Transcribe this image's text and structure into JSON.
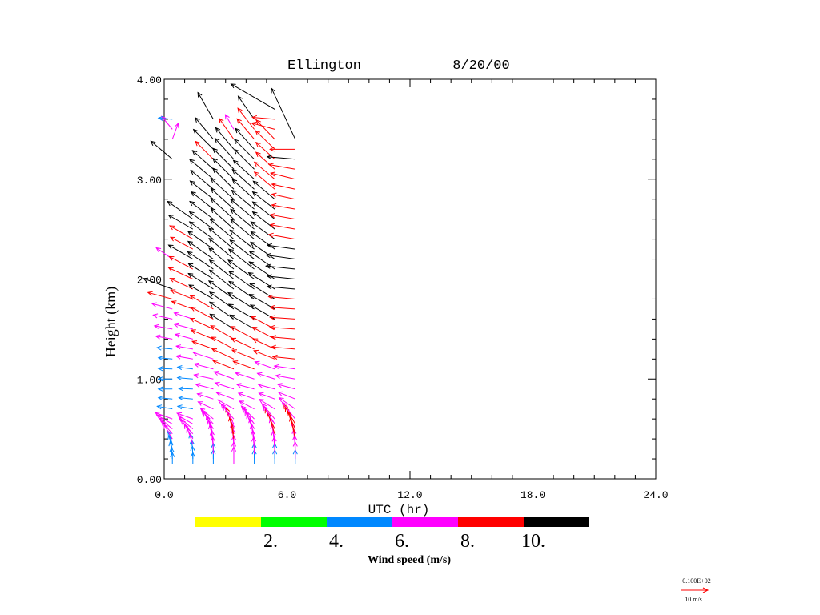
{
  "chart_data": {
    "type": "wind-profile",
    "title": "Ellington",
    "date": "8/20/00",
    "xlabel": "UTC (hr)",
    "ylabel": "Height (km)",
    "xlim": [
      0,
      24
    ],
    "ylim": [
      0,
      4
    ],
    "xticks": [
      "0.0",
      "6.0",
      "12.0",
      "18.0",
      "24.0"
    ],
    "yticks": [
      "0.00",
      "1.00",
      "2.00",
      "3.00",
      "4.00"
    ],
    "colorbar": {
      "label": "Wind speed (m/s)",
      "colors": [
        "#ffff00",
        "#00ff00",
        "#0088ff",
        "#ff00ff",
        "#ff0000",
        "#000000"
      ],
      "tick_labels": [
        "2.",
        "4.",
        "6.",
        "8.",
        "10."
      ]
    },
    "reference_vector": {
      "value_label": "0.100E+02",
      "unit_label": "10 m/s",
      "color": "#ff0000"
    },
    "profile_times": [
      0.4,
      1.4,
      2.4,
      3.4,
      4.4,
      5.4,
      6.4
    ],
    "profiles": [
      {
        "t": 0.4,
        "h": [
          0.15,
          0.2,
          0.25,
          0.3,
          0.35,
          0.4,
          0.45,
          0.5,
          0.55,
          0.6,
          0.7,
          0.8,
          0.9,
          1.0,
          1.1,
          1.2,
          1.3,
          1.4,
          1.5,
          1.6,
          1.7,
          1.8,
          1.9,
          2.2,
          3.2,
          3.4,
          3.5,
          3.6
        ],
        "speed": [
          4,
          4,
          4.5,
          5,
          5,
          6,
          6,
          6,
          6.5,
          6.5,
          5.5,
          5,
          5,
          5,
          5,
          5,
          5.5,
          6,
          6.5,
          7,
          7.5,
          9,
          11,
          7,
          10,
          6,
          6,
          5
        ],
        "dir": [
          180,
          175,
          170,
          165,
          160,
          150,
          140,
          130,
          120,
          110,
          100,
          95,
          90,
          90,
          92,
          95,
          95,
          100,
          100,
          102,
          105,
          105,
          110,
          125,
          130,
          200,
          140,
          95
        ]
      },
      {
        "t": 1.4,
        "h": [
          0.15,
          0.2,
          0.25,
          0.3,
          0.35,
          0.4,
          0.45,
          0.5,
          0.55,
          0.6,
          0.7,
          0.8,
          0.9,
          1.0,
          1.1,
          1.2,
          1.3,
          1.4,
          1.5,
          1.6,
          1.7,
          1.8,
          1.9,
          2.0,
          2.1,
          2.2,
          2.3,
          2.4,
          2.5,
          2.6
        ],
        "speed": [
          4,
          4.5,
          5,
          5.5,
          6,
          6,
          6.5,
          6.5,
          6,
          6,
          5.5,
          5,
          5,
          5.5,
          5.5,
          6,
          6,
          6.5,
          7,
          7,
          8,
          8.5,
          9,
          9.5,
          9.5,
          10,
          9,
          9.5,
          10,
          11
        ],
        "dir": [
          180,
          178,
          175,
          170,
          160,
          150,
          140,
          130,
          120,
          110,
          100,
          95,
          92,
          95,
          97,
          100,
          100,
          105,
          105,
          108,
          110,
          112,
          115,
          115,
          118,
          120,
          118,
          120,
          120,
          125
        ]
      },
      {
        "t": 2.4,
        "h": [
          0.15,
          0.2,
          0.25,
          0.3,
          0.35,
          0.4,
          0.45,
          0.5,
          0.55,
          0.6,
          0.7,
          0.8,
          0.9,
          1.0,
          1.1,
          1.2,
          1.3,
          1.4,
          1.5,
          1.6,
          1.7,
          1.8,
          1.9,
          2.0,
          2.1,
          2.2,
          2.3,
          2.4,
          2.5,
          2.6,
          2.7,
          2.8,
          2.9,
          3.0,
          3.1,
          3.2,
          3.3,
          3.4,
          3.6
        ],
        "speed": [
          5,
          5.5,
          6,
          6.5,
          7,
          7,
          7,
          7,
          6.5,
          6,
          6,
          6,
          6.5,
          7,
          7,
          7.5,
          8,
          8.5,
          9,
          9,
          9.5,
          10,
          10.5,
          10.5,
          11,
          11,
          11,
          10.5,
          10.5,
          10.5,
          10,
          10.5,
          10.5,
          11,
          10,
          9,
          10,
          10,
          11
        ],
        "dir": [
          180,
          180,
          178,
          175,
          170,
          165,
          160,
          150,
          140,
          130,
          115,
          108,
          105,
          102,
          105,
          108,
          110,
          112,
          115,
          118,
          120,
          120,
          122,
          122,
          124,
          125,
          125,
          126,
          126,
          127,
          128,
          128,
          130,
          130,
          132,
          135,
          135,
          140,
          150
        ]
      },
      {
        "t": 3.4,
        "h": [
          0.15,
          0.2,
          0.25,
          0.3,
          0.35,
          0.4,
          0.45,
          0.5,
          0.55,
          0.6,
          0.7,
          0.8,
          0.9,
          1.0,
          1.1,
          1.2,
          1.3,
          1.4,
          1.5,
          1.6,
          1.7,
          1.8,
          1.9,
          2.0,
          2.1,
          2.2,
          2.3,
          2.4,
          2.5,
          2.6,
          2.7,
          2.8,
          2.9,
          3.0,
          3.1,
          3.2,
          3.3,
          3.4,
          3.5
        ],
        "speed": [
          6,
          6,
          6.5,
          7,
          7.5,
          8,
          8,
          8,
          7.5,
          7,
          6.5,
          6.5,
          7,
          7.5,
          8,
          8.5,
          9,
          9.5,
          10,
          10.5,
          10.5,
          11,
          11,
          11,
          11.5,
          11.5,
          11.5,
          11,
          11,
          11,
          11,
          11,
          10.5,
          10.5,
          10.5,
          10,
          10,
          9,
          6
        ],
        "dir": [
          180,
          180,
          180,
          178,
          175,
          170,
          165,
          160,
          150,
          140,
          120,
          110,
          108,
          110,
          112,
          115,
          118,
          120,
          122,
          125,
          125,
          126,
          128,
          128,
          130,
          130,
          130,
          130,
          132,
          132,
          132,
          132,
          135,
          135,
          135,
          138,
          140,
          145,
          150
        ]
      },
      {
        "t": 4.4,
        "h": [
          0.15,
          0.2,
          0.25,
          0.3,
          0.35,
          0.4,
          0.45,
          0.5,
          0.55,
          0.6,
          0.7,
          0.8,
          0.9,
          1.0,
          1.1,
          1.2,
          1.3,
          1.4,
          1.5,
          1.6,
          1.7,
          1.8,
          1.9,
          2.0,
          2.1,
          2.2,
          2.3,
          2.4,
          2.5,
          2.6,
          2.7,
          2.8,
          2.9,
          3.0,
          3.1,
          3.2,
          3.3,
          3.4,
          3.5,
          3.6
        ],
        "speed": [
          5,
          5.5,
          6,
          6.5,
          7,
          7.5,
          7.5,
          7,
          7,
          6.5,
          6,
          6,
          6.5,
          7,
          8,
          8.5,
          9,
          9.5,
          10,
          10.5,
          11,
          11,
          11,
          11.5,
          11.5,
          11,
          11,
          11,
          11,
          11,
          10.5,
          10.5,
          10.5,
          10,
          10,
          10,
          10,
          9.5,
          9.5,
          10
        ],
        "dir": [
          180,
          180,
          178,
          175,
          172,
          168,
          160,
          152,
          145,
          135,
          118,
          110,
          105,
          108,
          110,
          112,
          115,
          118,
          120,
          120,
          122,
          125,
          125,
          126,
          128,
          128,
          128,
          130,
          130,
          130,
          130,
          132,
          132,
          132,
          135,
          135,
          138,
          140,
          142,
          145
        ]
      },
      {
        "t": 5.4,
        "h": [
          0.15,
          0.2,
          0.25,
          0.3,
          0.35,
          0.4,
          0.45,
          0.5,
          0.55,
          0.6,
          0.7,
          0.8,
          0.9,
          1.0,
          1.1,
          1.2,
          1.3,
          1.4,
          1.5,
          1.6,
          1.7,
          1.8,
          1.9,
          2.0,
          2.1,
          2.2,
          2.3,
          2.4,
          2.5,
          2.6,
          2.7,
          2.8,
          2.9,
          3.0,
          3.1,
          3.2,
          3.3,
          3.4,
          3.5,
          3.6,
          3.7
        ],
        "speed": [
          5,
          5.5,
          6,
          6.5,
          7,
          7.5,
          8,
          8,
          7.5,
          7,
          6.5,
          6,
          6,
          6.5,
          7.5,
          8,
          8.5,
          9,
          9.5,
          10,
          10.5,
          10.5,
          11,
          11,
          11,
          10.5,
          10.5,
          10.5,
          10,
          10,
          10,
          10,
          9.5,
          9.5,
          9,
          9,
          9.5,
          9.5,
          8.5,
          8,
          18
        ],
        "dir": [
          180,
          180,
          178,
          175,
          172,
          168,
          162,
          155,
          148,
          140,
          122,
          110,
          105,
          108,
          110,
          112,
          115,
          118,
          118,
          120,
          120,
          122,
          122,
          124,
          125,
          125,
          126,
          126,
          128,
          128,
          128,
          130,
          130,
          130,
          132,
          132,
          134,
          136,
          105,
          95,
          120
        ]
      },
      {
        "t": 6.4,
        "h": [
          0.15,
          0.2,
          0.25,
          0.3,
          0.35,
          0.4,
          0.45,
          0.5,
          0.55,
          0.6,
          0.7,
          0.8,
          0.9,
          1.0,
          1.1,
          1.2,
          1.3,
          1.4,
          1.5,
          1.6,
          1.7,
          1.8,
          1.9,
          2.0,
          2.1,
          2.2,
          2.3,
          2.4,
          2.5,
          2.6,
          2.7,
          2.8,
          2.9,
          3.0,
          3.1,
          3.2,
          3.3,
          3.4
        ],
        "speed": [
          5,
          6,
          6.5,
          7,
          7.5,
          8,
          8.5,
          8.5,
          8,
          7.5,
          7,
          6.5,
          6.5,
          7,
          7.5,
          8,
          8.5,
          8.5,
          9,
          9,
          9,
          9.5,
          10,
          10,
          10.5,
          10.5,
          10,
          9.5,
          9,
          9,
          8.5,
          8.5,
          8.5,
          9,
          9.5,
          10,
          9,
          20
        ],
        "dir": [
          180,
          180,
          178,
          176,
          172,
          168,
          162,
          156,
          150,
          142,
          125,
          112,
          105,
          100,
          98,
          96,
          95,
          95,
          94,
          94,
          94,
          95,
          95,
          96,
          96,
          98,
          98,
          100,
          100,
          100,
          100,
          102,
          102,
          104,
          100,
          95,
          90,
          155
        ]
      }
    ]
  }
}
